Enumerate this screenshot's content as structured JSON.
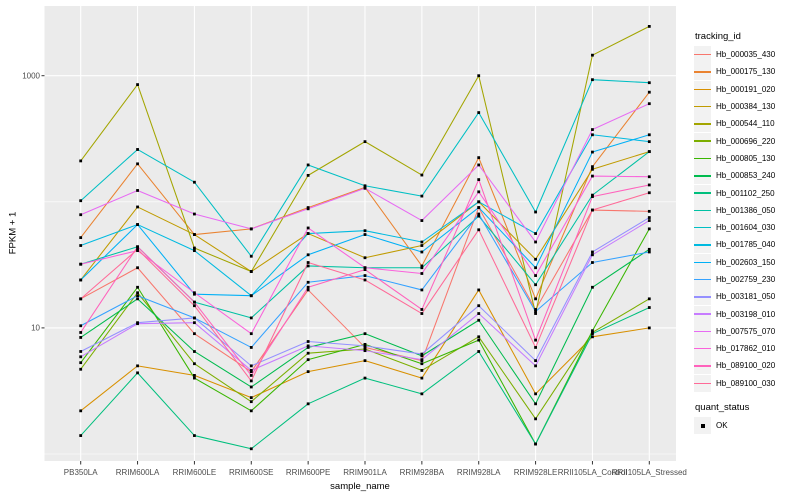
{
  "figure": {
    "y_axis_title": "FPKM + 1",
    "x_axis_title": "sample_name",
    "legend_title": "tracking_id",
    "quant_legend_title": "quant_status",
    "quant_legend_label": "OK"
  },
  "colors": {
    "panel_bg": "#EBEBEB",
    "grid": "#FFFFFF",
    "point": "#000000",
    "tick_mark": "#333333",
    "tick_text": "#4D4D4D",
    "title_text": "#000000",
    "legend_key_bg": "#F2F2F2"
  },
  "chart_data": {
    "type": "line",
    "title": "",
    "xlabel": "sample_name",
    "ylabel": "FPKM + 1",
    "y_scale": "log10",
    "ylim": [
      1,
      3500
    ],
    "y_ticks": [
      {
        "value": 1000,
        "label": "1000"
      },
      {
        "value": 10,
        "label": "10"
      }
    ],
    "y_minor_gridlines": [
      1,
      100
    ],
    "grid": true,
    "legend_position": "right",
    "legend_title": "tracking_id",
    "quant_status": {
      "title": "quant_status",
      "labels": [
        "OK"
      ]
    },
    "point_shape": "small-black-square",
    "categories": [
      "PB350LA",
      "RRIM600LA",
      "RRIM600LE",
      "RRIM600SE",
      "RRIM600PE",
      "RRIM901LA",
      "RRIM928BA",
      "RRIM928LA",
      "RRIM928LE",
      "RRII105LA_Control",
      "RRII105LA_Stressed"
    ],
    "series": [
      {
        "name": "Hb_000035_430",
        "color": "#F8766D",
        "values": [
          17,
          30,
          9,
          4.5,
          20,
          7,
          5.5,
          90,
          14,
          86,
          84
        ]
      },
      {
        "name": "Hb_000175_130",
        "color": "#EA8331",
        "values": [
          52,
          200,
          55,
          61,
          90,
          130,
          31,
          224,
          17,
          190,
          740
        ]
      },
      {
        "name": "Hb_000191_020",
        "color": "#D89000",
        "values": [
          2.2,
          5,
          4.2,
          2.8,
          4.5,
          5.5,
          4,
          20,
          3,
          8.5,
          10
        ]
      },
      {
        "name": "Hb_000384_130",
        "color": "#C09B00",
        "values": [
          24,
          91,
          55,
          28,
          56,
          36,
          45,
          100,
          35,
          181,
          250
        ]
      },
      {
        "name": "Hb_000544_110",
        "color": "#A3A500",
        "values": [
          211,
          850,
          43,
          28,
          162,
          300,
          163,
          1000,
          13,
          1455,
          2460
        ]
      },
      {
        "name": "Hb_000696_220",
        "color": "#7CAE00",
        "values": [
          4.7,
          19,
          5.2,
          2.6,
          6.3,
          6.8,
          4.6,
          8.5,
          1.9,
          9.2,
          17
        ]
      },
      {
        "name": "Hb_000805_130",
        "color": "#39B600",
        "values": [
          5.3,
          21,
          4,
          2.2,
          5.6,
          7.4,
          5.2,
          8,
          1.2,
          9.5,
          61
        ]
      },
      {
        "name": "Hb_000853_240",
        "color": "#00BB4E",
        "values": [
          8.4,
          17,
          6.5,
          3.4,
          7,
          9,
          6,
          11.5,
          2.5,
          21,
          42
        ]
      },
      {
        "name": "Hb_001102_250",
        "color": "#00BF7D",
        "values": [
          1.4,
          4.4,
          1.4,
          1.1,
          2.5,
          4,
          3,
          6.5,
          1.2,
          9,
          14.5
        ]
      },
      {
        "name": "Hb_001386_050",
        "color": "#00C1A3",
        "values": [
          32,
          44,
          16,
          12,
          31,
          30,
          30,
          77,
          22,
          113,
          250
        ]
      },
      {
        "name": "Hb_001604_030",
        "color": "#00BFC4",
        "values": [
          102,
          260,
          143,
          37,
          196,
          134,
          111,
          510,
          83,
          930,
          880
        ]
      },
      {
        "name": "Hb_001785_040",
        "color": "#00BAE0",
        "values": [
          45,
          66,
          41,
          18,
          56,
          59,
          48,
          100,
          56,
          340,
          300
        ]
      },
      {
        "name": "Hb_002603_150",
        "color": "#00B0F6",
        "values": [
          24,
          66,
          18.5,
          18,
          38,
          55,
          40,
          90,
          30,
          248,
          340
        ]
      },
      {
        "name": "Hb_002759_230",
        "color": "#35A2FF",
        "values": [
          10.4,
          18,
          12,
          7,
          23,
          26,
          20,
          80,
          13.5,
          33,
          40
        ]
      },
      {
        "name": "Hb_003181_050",
        "color": "#9590FF",
        "values": [
          6.5,
          11,
          12,
          5,
          7.8,
          7.2,
          6.2,
          15,
          5.5,
          40,
          75
        ]
      },
      {
        "name": "Hb_003198_010",
        "color": "#C77CFF",
        "values": [
          5.9,
          10.8,
          11,
          4.6,
          7.2,
          6.6,
          5.6,
          13,
          5,
          38,
          71
        ]
      },
      {
        "name": "Hb_007575_070",
        "color": "#E76BF3",
        "values": [
          79,
          123,
          80,
          61,
          88,
          128,
          71,
          196,
          48,
          374,
          600
        ]
      },
      {
        "name": "Hb_017862_010",
        "color": "#FA62DB",
        "values": [
          32,
          41,
          19,
          9,
          62,
          30,
          27,
          120,
          26,
          160,
          158
        ]
      },
      {
        "name": "Hb_089100_020",
        "color": "#FF62BC",
        "values": [
          9.2,
          44,
          16,
          4.2,
          21,
          29,
          14,
          150,
          8,
          110,
          136
        ]
      },
      {
        "name": "Hb_089100_030",
        "color": "#FF6A98",
        "values": [
          17,
          42,
          15,
          3.8,
          33,
          24,
          13,
          60,
          7,
          86,
          118
        ]
      }
    ]
  }
}
